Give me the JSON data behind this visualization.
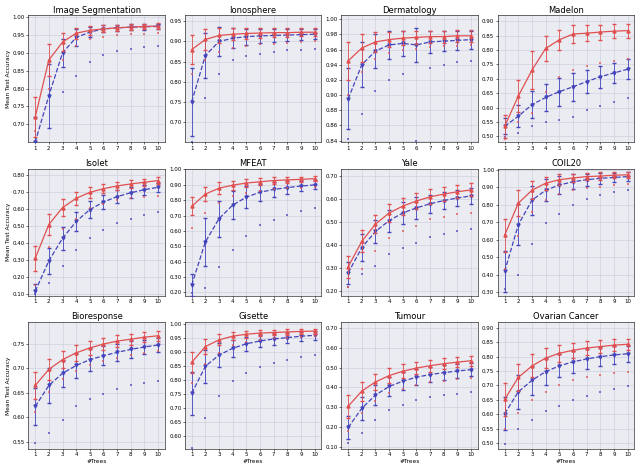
{
  "datasets": [
    {
      "title": "Image Segmentation",
      "ylim": [
        0.65,
        1.005
      ],
      "yticks": [
        0.7,
        0.75,
        0.8,
        0.85,
        0.9,
        0.95,
        1.0
      ],
      "red_mean": [
        0.72,
        0.88,
        0.93,
        0.955,
        0.963,
        0.967,
        0.97,
        0.972,
        0.974,
        0.975
      ],
      "red_err": [
        0.055,
        0.045,
        0.025,
        0.015,
        0.012,
        0.01,
        0.009,
        0.009,
        0.008,
        0.008
      ],
      "red_min": [
        0.68,
        0.8,
        0.88,
        0.92,
        0.94,
        0.945,
        0.95,
        0.952,
        0.953,
        0.955
      ],
      "blue_mean": [
        0.65,
        0.78,
        0.9,
        0.943,
        0.958,
        0.967,
        0.97,
        0.972,
        0.973,
        0.974
      ],
      "blue_err": [
        0.07,
        0.09,
        0.04,
        0.025,
        0.015,
        0.01,
        0.009,
        0.009,
        0.008,
        0.008
      ],
      "blue_min": [
        0.45,
        0.6,
        0.79,
        0.835,
        0.875,
        0.895,
        0.905,
        0.91,
        0.915,
        0.92
      ]
    },
    {
      "title": "Ionosphere",
      "ylim": [
        0.65,
        0.965
      ],
      "yticks": [
        0.7,
        0.75,
        0.8,
        0.85,
        0.9,
        0.95
      ],
      "red_mean": [
        0.88,
        0.905,
        0.915,
        0.918,
        0.92,
        0.921,
        0.922,
        0.922,
        0.923,
        0.923
      ],
      "red_err": [
        0.035,
        0.025,
        0.018,
        0.015,
        0.013,
        0.012,
        0.011,
        0.011,
        0.01,
        0.01
      ],
      "red_min": [
        0.82,
        0.855,
        0.875,
        0.885,
        0.89,
        0.893,
        0.895,
        0.896,
        0.898,
        0.9
      ],
      "blue_mean": [
        0.75,
        0.865,
        0.9,
        0.908,
        0.912,
        0.914,
        0.915,
        0.916,
        0.917,
        0.918
      ],
      "blue_err": [
        0.085,
        0.055,
        0.035,
        0.025,
        0.02,
        0.018,
        0.016,
        0.015,
        0.014,
        0.013
      ],
      "blue_min": [
        0.65,
        0.76,
        0.82,
        0.855,
        0.865,
        0.87,
        0.875,
        0.878,
        0.88,
        0.882
      ]
    },
    {
      "title": "Dermatology",
      "ylim": [
        0.838,
        1.005
      ],
      "yticks": [
        0.84,
        0.86,
        0.88,
        0.9,
        0.92,
        0.94,
        0.96,
        0.98,
        1.0
      ],
      "red_mean": [
        0.945,
        0.962,
        0.97,
        0.973,
        0.975,
        0.976,
        0.977,
        0.977,
        0.978,
        0.978
      ],
      "red_err": [
        0.025,
        0.018,
        0.013,
        0.01,
        0.009,
        0.009,
        0.008,
        0.008,
        0.008,
        0.008
      ],
      "red_min": [
        0.9,
        0.93,
        0.948,
        0.955,
        0.959,
        0.961,
        0.963,
        0.964,
        0.965,
        0.966
      ],
      "blue_mean": [
        0.895,
        0.94,
        0.958,
        0.966,
        0.968,
        0.966,
        0.97,
        0.971,
        0.972,
        0.973
      ],
      "blue_err": [
        0.04,
        0.03,
        0.022,
        0.018,
        0.016,
        0.022,
        0.015,
        0.013,
        0.012,
        0.012
      ],
      "blue_min": [
        0.842,
        0.875,
        0.905,
        0.92,
        0.928,
        0.84,
        0.935,
        0.94,
        0.943,
        0.945
      ]
    },
    {
      "title": "Madelon",
      "ylim": [
        0.48,
        0.92
      ],
      "yticks": [
        0.5,
        0.55,
        0.6,
        0.65,
        0.7,
        0.75,
        0.8,
        0.85,
        0.9
      ],
      "red_mean": [
        0.535,
        0.64,
        0.73,
        0.805,
        0.835,
        0.855,
        0.858,
        0.862,
        0.865,
        0.867
      ],
      "red_err": [
        0.04,
        0.055,
        0.065,
        0.045,
        0.035,
        0.03,
        0.028,
        0.026,
        0.025,
        0.024
      ],
      "red_min": [
        0.49,
        0.55,
        0.58,
        0.655,
        0.705,
        0.73,
        0.745,
        0.755,
        0.762,
        0.768
      ],
      "blue_mean": [
        0.535,
        0.57,
        0.61,
        0.635,
        0.655,
        0.672,
        0.69,
        0.707,
        0.72,
        0.733
      ],
      "blue_err": [
        0.028,
        0.038,
        0.048,
        0.048,
        0.048,
        0.048,
        0.04,
        0.038,
        0.036,
        0.034
      ],
      "blue_min": [
        0.498,
        0.51,
        0.535,
        0.55,
        0.558,
        0.568,
        0.59,
        0.605,
        0.62,
        0.633
      ]
    },
    {
      "title": "Isolet",
      "ylim": [
        0.09,
        0.84
      ],
      "yticks": [
        0.1,
        0.2,
        0.3,
        0.4,
        0.5,
        0.6,
        0.7,
        0.8
      ],
      "red_mean": [
        0.31,
        0.51,
        0.61,
        0.665,
        0.7,
        0.722,
        0.738,
        0.75,
        0.76,
        0.77
      ],
      "red_err": [
        0.075,
        0.06,
        0.048,
        0.038,
        0.032,
        0.028,
        0.025,
        0.023,
        0.022,
        0.021
      ],
      "red_min": [
        0.155,
        0.375,
        0.485,
        0.545,
        0.61,
        0.633,
        0.655,
        0.665,
        0.672,
        0.68
      ],
      "blue_mean": [
        0.115,
        0.295,
        0.428,
        0.528,
        0.598,
        0.643,
        0.675,
        0.698,
        0.716,
        0.73
      ],
      "blue_err": [
        0.045,
        0.075,
        0.068,
        0.058,
        0.05,
        0.042,
        0.038,
        0.033,
        0.03,
        0.028
      ],
      "blue_min": [
        0.098,
        0.165,
        0.265,
        0.36,
        0.43,
        0.48,
        0.518,
        0.545,
        0.568,
        0.585
      ]
    },
    {
      "title": "MFEAT",
      "ylim": [
        0.18,
        1.005
      ],
      "yticks": [
        0.2,
        0.3,
        0.4,
        0.5,
        0.6,
        0.7,
        0.8,
        0.9,
        1.0
      ],
      "red_mean": [
        0.76,
        0.84,
        0.878,
        0.898,
        0.912,
        0.92,
        0.928,
        0.932,
        0.936,
        0.94
      ],
      "red_err": [
        0.058,
        0.048,
        0.038,
        0.03,
        0.025,
        0.022,
        0.02,
        0.019,
        0.018,
        0.017
      ],
      "red_min": [
        0.62,
        0.72,
        0.785,
        0.828,
        0.85,
        0.862,
        0.872,
        0.878,
        0.882,
        0.888
      ],
      "blue_mean": [
        0.248,
        0.528,
        0.68,
        0.768,
        0.82,
        0.852,
        0.87,
        0.882,
        0.892,
        0.9
      ],
      "blue_err": [
        0.072,
        0.158,
        0.118,
        0.092,
        0.07,
        0.055,
        0.048,
        0.04,
        0.035,
        0.03
      ],
      "blue_min": [
        0.195,
        0.228,
        0.368,
        0.478,
        0.568,
        0.64,
        0.672,
        0.705,
        0.728,
        0.748
      ]
    },
    {
      "title": "Yale",
      "ylim": [
        0.18,
        0.73
      ],
      "yticks": [
        0.2,
        0.3,
        0.4,
        0.5,
        0.6,
        0.7
      ],
      "red_mean": [
        0.305,
        0.415,
        0.49,
        0.538,
        0.568,
        0.59,
        0.608,
        0.62,
        0.63,
        0.638
      ],
      "red_err": [
        0.048,
        0.048,
        0.04,
        0.038,
        0.037,
        0.036,
        0.032,
        0.03,
        0.029,
        0.028
      ],
      "red_min": [
        0.218,
        0.295,
        0.375,
        0.428,
        0.46,
        0.48,
        0.51,
        0.522,
        0.532,
        0.54
      ],
      "blue_mean": [
        0.278,
        0.388,
        0.458,
        0.505,
        0.538,
        0.56,
        0.578,
        0.592,
        0.603,
        0.612
      ],
      "blue_err": [
        0.048,
        0.058,
        0.05,
        0.048,
        0.048,
        0.048,
        0.04,
        0.038,
        0.036,
        0.035
      ],
      "blue_min": [
        0.215,
        0.272,
        0.308,
        0.358,
        0.385,
        0.408,
        0.435,
        0.448,
        0.46,
        0.47
      ]
    },
    {
      "title": "COIL20",
      "ylim": [
        0.28,
        1.005
      ],
      "yticks": [
        0.3,
        0.4,
        0.5,
        0.6,
        0.7,
        0.8,
        0.9,
        1.0
      ],
      "red_mean": [
        0.625,
        0.808,
        0.882,
        0.922,
        0.942,
        0.952,
        0.96,
        0.963,
        0.968,
        0.97
      ],
      "red_err": [
        0.095,
        0.075,
        0.05,
        0.038,
        0.03,
        0.025,
        0.022,
        0.021,
        0.018,
        0.017
      ],
      "red_min": [
        0.43,
        0.618,
        0.758,
        0.825,
        0.862,
        0.882,
        0.892,
        0.9,
        0.91,
        0.915
      ],
      "blue_mean": [
        0.418,
        0.685,
        0.825,
        0.882,
        0.912,
        0.93,
        0.942,
        0.95,
        0.955,
        0.96
      ],
      "blue_err": [
        0.118,
        0.118,
        0.082,
        0.062,
        0.05,
        0.042,
        0.035,
        0.03,
        0.028,
        0.025
      ],
      "blue_min": [
        0.315,
        0.395,
        0.575,
        0.695,
        0.748,
        0.795,
        0.832,
        0.855,
        0.87,
        0.882
      ]
    },
    {
      "title": "Bioresponse",
      "ylim": [
        0.535,
        0.795
      ],
      "yticks": [
        0.55,
        0.6,
        0.65,
        0.7,
        0.75
      ],
      "red_mean": [
        0.665,
        0.698,
        0.718,
        0.732,
        0.742,
        0.75,
        0.756,
        0.76,
        0.764,
        0.767
      ],
      "red_err": [
        0.028,
        0.022,
        0.018,
        0.016,
        0.014,
        0.013,
        0.012,
        0.011,
        0.01,
        0.01
      ],
      "red_min": [
        0.61,
        0.652,
        0.678,
        0.695,
        0.708,
        0.716,
        0.722,
        0.727,
        0.731,
        0.735
      ],
      "blue_mean": [
        0.622,
        0.665,
        0.69,
        0.706,
        0.718,
        0.726,
        0.733,
        0.739,
        0.744,
        0.748
      ],
      "blue_err": [
        0.038,
        0.035,
        0.028,
        0.025,
        0.023,
        0.02,
        0.018,
        0.017,
        0.015,
        0.014
      ],
      "blue_min": [
        0.548,
        0.568,
        0.595,
        0.622,
        0.638,
        0.648,
        0.658,
        0.665,
        0.67,
        0.675
      ]
    },
    {
      "title": "Gisette",
      "ylim": [
        0.555,
        1.005
      ],
      "yticks": [
        0.6,
        0.65,
        0.7,
        0.75,
        0.8,
        0.85,
        0.9,
        0.95,
        1.0
      ],
      "red_mean": [
        0.862,
        0.918,
        0.942,
        0.955,
        0.962,
        0.966,
        0.968,
        0.97,
        0.972,
        0.973
      ],
      "red_err": [
        0.038,
        0.028,
        0.02,
        0.015,
        0.012,
        0.011,
        0.01,
        0.01,
        0.009,
        0.009
      ],
      "red_min": [
        0.79,
        0.855,
        0.895,
        0.922,
        0.935,
        0.942,
        0.947,
        0.95,
        0.953,
        0.956
      ],
      "blue_mean": [
        0.752,
        0.848,
        0.888,
        0.912,
        0.928,
        0.938,
        0.945,
        0.95,
        0.955,
        0.958
      ],
      "blue_err": [
        0.075,
        0.058,
        0.042,
        0.03,
        0.025,
        0.022,
        0.02,
        0.018,
        0.016,
        0.015
      ],
      "blue_min": [
        0.558,
        0.665,
        0.742,
        0.795,
        0.825,
        0.845,
        0.86,
        0.872,
        0.88,
        0.888
      ]
    },
    {
      "title": "Tumour",
      "ylim": [
        0.09,
        0.73
      ],
      "yticks": [
        0.1,
        0.2,
        0.3,
        0.4,
        0.5,
        0.6,
        0.7
      ],
      "red_mean": [
        0.305,
        0.382,
        0.428,
        0.46,
        0.482,
        0.498,
        0.51,
        0.52,
        0.528,
        0.535
      ],
      "red_err": [
        0.058,
        0.048,
        0.04,
        0.038,
        0.036,
        0.032,
        0.03,
        0.028,
        0.027,
        0.026
      ],
      "red_min": [
        0.182,
        0.272,
        0.332,
        0.372,
        0.392,
        0.412,
        0.428,
        0.435,
        0.442,
        0.45
      ],
      "blue_mean": [
        0.198,
        0.295,
        0.362,
        0.405,
        0.432,
        0.452,
        0.465,
        0.475,
        0.483,
        0.49
      ],
      "blue_err": [
        0.058,
        0.058,
        0.05,
        0.048,
        0.046,
        0.04,
        0.038,
        0.036,
        0.035,
        0.034
      ],
      "blue_min": [
        0.118,
        0.168,
        0.238,
        0.288,
        0.31,
        0.338,
        0.35,
        0.36,
        0.368,
        0.375
      ]
    },
    {
      "title": "Ovarian Cancer",
      "ylim": [
        0.48,
        0.92
      ],
      "yticks": [
        0.5,
        0.55,
        0.6,
        0.65,
        0.7,
        0.75,
        0.8,
        0.85,
        0.9
      ],
      "red_mean": [
        0.652,
        0.728,
        0.768,
        0.795,
        0.812,
        0.822,
        0.83,
        0.835,
        0.84,
        0.843
      ],
      "red_err": [
        0.058,
        0.048,
        0.04,
        0.035,
        0.03,
        0.026,
        0.024,
        0.023,
        0.021,
        0.02
      ],
      "red_min": [
        0.548,
        0.605,
        0.648,
        0.678,
        0.7,
        0.718,
        0.728,
        0.735,
        0.742,
        0.748
      ],
      "blue_mean": [
        0.602,
        0.678,
        0.718,
        0.748,
        0.768,
        0.782,
        0.792,
        0.8,
        0.806,
        0.81
      ],
      "blue_err": [
        0.058,
        0.058,
        0.05,
        0.048,
        0.04,
        0.038,
        0.034,
        0.033,
        0.03,
        0.028
      ],
      "blue_min": [
        0.498,
        0.548,
        0.58,
        0.61,
        0.63,
        0.65,
        0.662,
        0.678,
        0.688,
        0.698
      ]
    }
  ],
  "x_values": [
    1,
    2,
    3,
    4,
    5,
    6,
    7,
    8,
    9,
    10
  ],
  "red_color": "#e05050",
  "blue_color": "#4444bb",
  "xlabel": "#Trees",
  "ylabel": "Mean Test Accuracy",
  "grid_color": "#ccccdd",
  "background_color": "#ebebf2",
  "nrows": 3,
  "ncols": 4
}
